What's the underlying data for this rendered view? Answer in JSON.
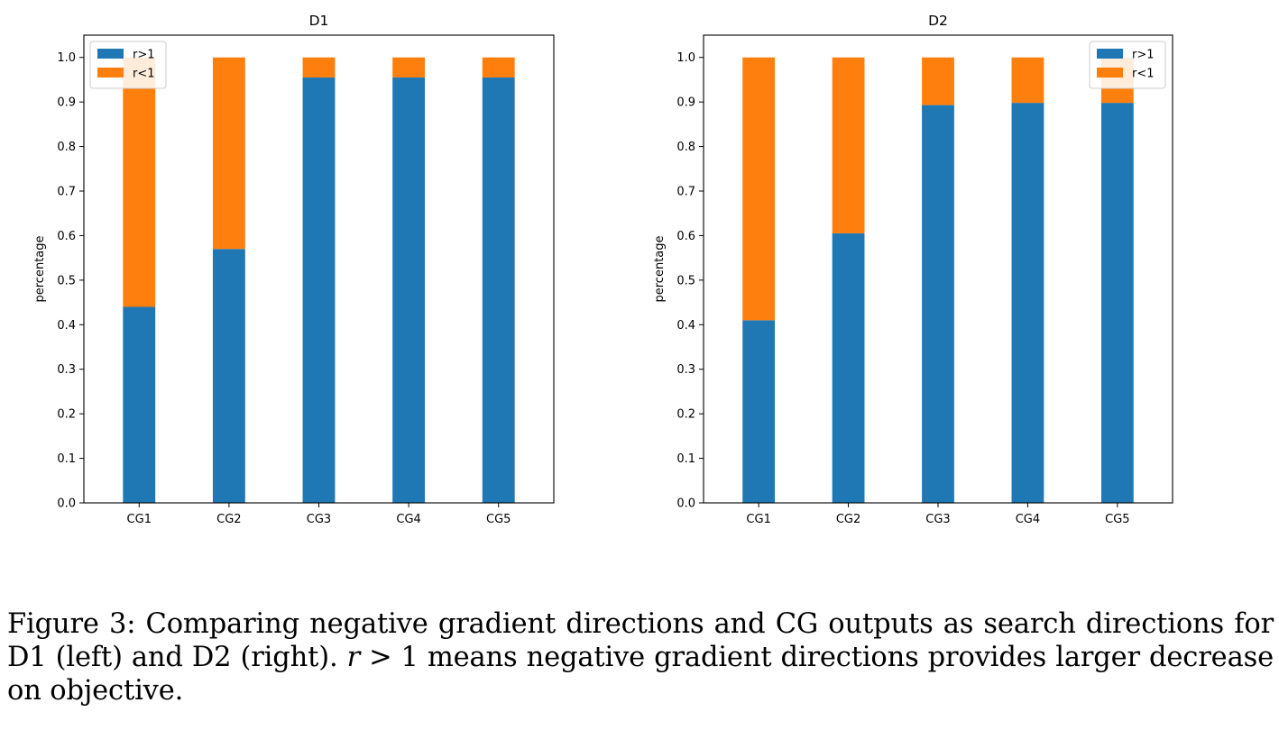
{
  "chart_data": [
    {
      "type": "bar",
      "stacked": true,
      "title": "D1",
      "xlabel": "",
      "ylabel": "percentage",
      "categories": [
        "CG1",
        "CG2",
        "CG3",
        "CG4",
        "CG5"
      ],
      "series": [
        {
          "name": "r>1",
          "color": "#1f77b4",
          "values": [
            0.44,
            0.57,
            0.955,
            0.955,
            0.955
          ]
        },
        {
          "name": "r<1",
          "color": "#ff7f0e",
          "values": [
            0.56,
            0.43,
            0.045,
            0.045,
            0.045
          ]
        }
      ],
      "ylim": [
        0,
        1.05
      ],
      "yticks": [
        "0.0",
        "0.1",
        "0.2",
        "0.3",
        "0.4",
        "0.5",
        "0.6",
        "0.7",
        "0.8",
        "0.9",
        "1.0"
      ],
      "grid": false,
      "legend_position": "top-left"
    },
    {
      "type": "bar",
      "stacked": true,
      "title": "D2",
      "xlabel": "",
      "ylabel": "percentage",
      "categories": [
        "CG1",
        "CG2",
        "CG3",
        "CG4",
        "CG5"
      ],
      "series": [
        {
          "name": "r>1",
          "color": "#1f77b4",
          "values": [
            0.41,
            0.605,
            0.893,
            0.898,
            0.898
          ]
        },
        {
          "name": "r<1",
          "color": "#ff7f0e",
          "values": [
            0.59,
            0.395,
            0.107,
            0.102,
            0.102
          ]
        }
      ],
      "ylim": [
        0,
        1.05
      ],
      "yticks": [
        "0.0",
        "0.1",
        "0.2",
        "0.3",
        "0.4",
        "0.5",
        "0.6",
        "0.7",
        "0.8",
        "0.9",
        "1.0"
      ],
      "grid": false,
      "legend_position": "top-right"
    }
  ],
  "caption": {
    "prefix": "Figure 3: Comparing negative gradient directions and CG outputs as search directions for D1 (left) and D2 (right).",
    "math_r": "r",
    "math_rest": " > 1",
    "suffix": " means negative gradient directions provides larger decrease on objective."
  }
}
